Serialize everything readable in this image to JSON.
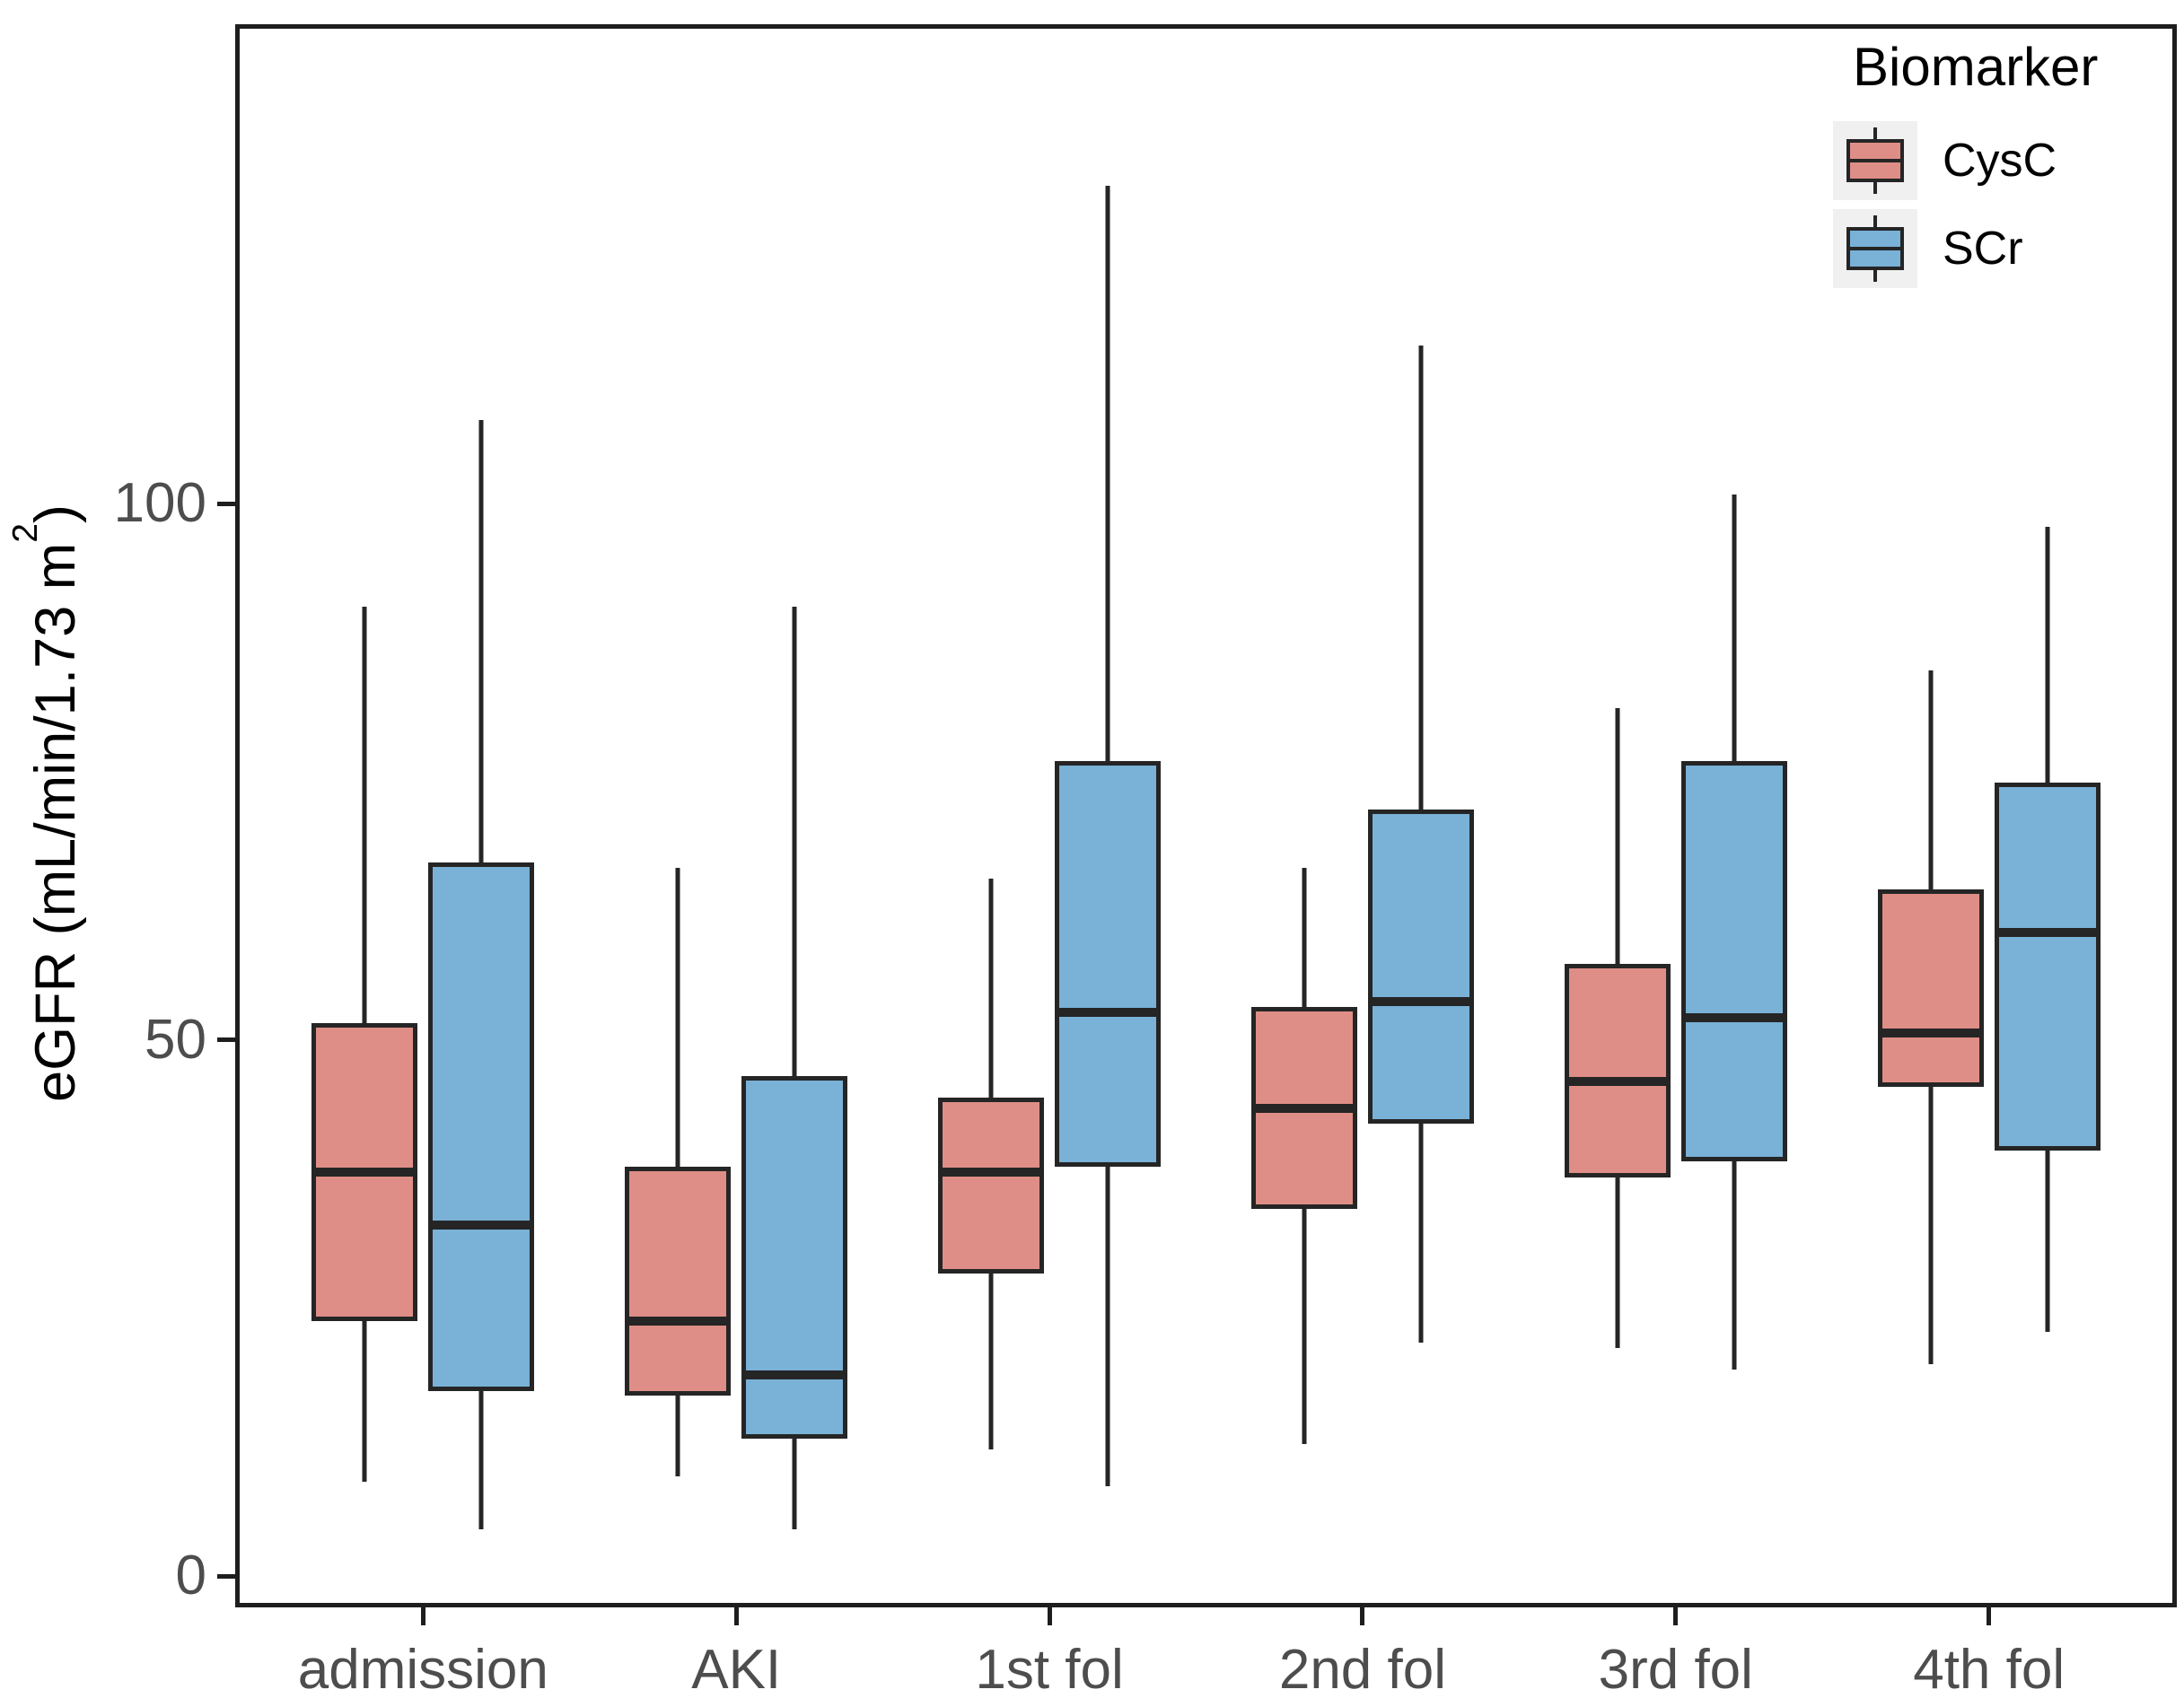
{
  "y_axis": {
    "title_prefix": "eGFR (mL/min/1.73 m",
    "title_sup": "2",
    "title_suffix": ")",
    "ticks": [
      0,
      50,
      100
    ]
  },
  "legend": {
    "title": "Biomarker",
    "items": [
      {
        "label": "CysC",
        "color": "#de8e86"
      },
      {
        "label": "SCr",
        "color": "#79b1d7"
      }
    ]
  },
  "colors": {
    "cysc_fill": "#de8e86",
    "scr_fill": "#79b1d7",
    "box_stroke": "#252525",
    "axis_text": "#4d4d4d",
    "panel_border": "#1e1e1e",
    "legend_key_bg": "#f0f0f0"
  },
  "chart_data": {
    "type": "boxplot",
    "title": "",
    "xlabel": "",
    "ylabel": "eGFR (mL/min/1.73 m²)",
    "ylim": [
      -2.9,
      144.7
    ],
    "y_ticks": [
      0,
      50,
      100
    ],
    "grid": false,
    "legend_position": "inside-top-right",
    "legend_title": "Biomarker",
    "categories": [
      "admission",
      "AKI",
      "1st fol",
      "2nd fol",
      "3rd fol",
      "4th fol"
    ],
    "series": [
      {
        "name": "CysC",
        "color": "#de8e86",
        "boxes": [
          {
            "low": 8.5,
            "q1": 23.5,
            "median": 37.5,
            "q3": 51.5,
            "high": 90.5
          },
          {
            "low": 9,
            "q1": 16.5,
            "median": 23.5,
            "q3": 38,
            "high": 66
          },
          {
            "low": 11.5,
            "q1": 28,
            "median": 37.5,
            "q3": 44.5,
            "high": 65
          },
          {
            "low": 12,
            "q1": 34,
            "median": 43.5,
            "q3": 53,
            "high": 66
          },
          {
            "low": 21,
            "q1": 37,
            "median": 46,
            "q3": 57,
            "high": 81
          },
          {
            "low": 19.5,
            "q1": 45.5,
            "median": 50.5,
            "q3": 64,
            "high": 84.5
          }
        ]
      },
      {
        "name": "SCr",
        "color": "#79b1d7",
        "boxes": [
          {
            "low": 4,
            "q1": 17,
            "median": 32.5,
            "q3": 66.5,
            "high": 108
          },
          {
            "low": 4,
            "q1": 12.5,
            "median": 18.5,
            "q3": 46.5,
            "high": 90.5
          },
          {
            "low": 8,
            "q1": 38,
            "median": 52.5,
            "q3": 76,
            "high": 130
          },
          {
            "low": 21.5,
            "q1": 42,
            "median": 53.5,
            "q3": 71.5,
            "high": 115
          },
          {
            "low": 19,
            "q1": 38.5,
            "median": 52,
            "q3": 76,
            "high": 101
          },
          {
            "low": 22.5,
            "q1": 39.5,
            "median": 60,
            "q3": 74,
            "high": 98
          }
        ]
      }
    ]
  }
}
